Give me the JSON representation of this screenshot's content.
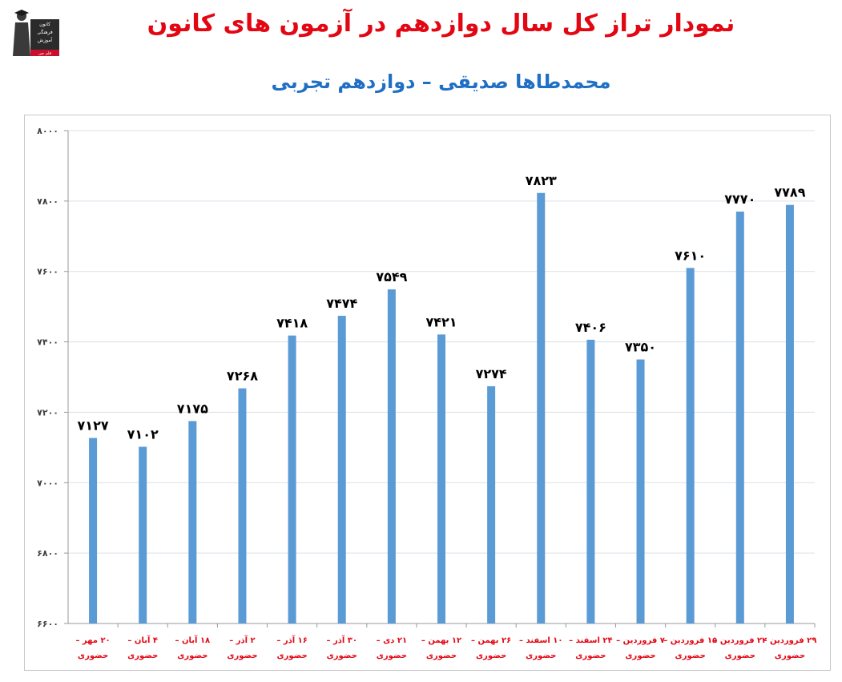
{
  "header": {
    "title": "نمودار تراز کل سال دوازدهم در آزمون های کانون",
    "subtitle": "محمدطاها صدیقی – دوازدهم تجربی",
    "logo_lines": [
      "کانون",
      "فرهنگی",
      "آموزش",
      "قلم چی"
    ]
  },
  "colors": {
    "title": "#e30613",
    "subtitle": "#1f6fc4",
    "bar": "#5b9bd5",
    "grid": "#d9e1ea",
    "category_label": "#e30613",
    "value_label": "#000000",
    "tick_label": "#404040"
  },
  "chart_data": {
    "type": "bar",
    "title": "نمودار تراز کل سال دوازدهم در آزمون های کانون",
    "subtitle": "محمدطاها صدیقی – دوازدهم تجربی",
    "categories": [
      [
        "۲۰ مهر –",
        "حضوری"
      ],
      [
        "۴ آبان –",
        "حضوری"
      ],
      [
        "۱۸ آبان –",
        "حضوری"
      ],
      [
        "۲ آذر –",
        "حضوری"
      ],
      [
        "۱۶ آذر –",
        "حضوری"
      ],
      [
        "۳۰ آذر –",
        "حضوری"
      ],
      [
        "۲۱ دی –",
        "حضوری"
      ],
      [
        "۱۲ بهمن –",
        "حضوری"
      ],
      [
        "۲۶ بهمن –",
        "حضوری"
      ],
      [
        "۱۰ اسفند –",
        "حضوری"
      ],
      [
        "۲۴ اسفند –",
        "حضوری"
      ],
      [
        "۷ فروردین –",
        "حضوری"
      ],
      [
        "۱۵ فروردین –",
        "حضوری"
      ],
      [
        "۲۲ فروردین –",
        "حضوری"
      ],
      [
        "۲۹ فروردین –",
        "حضوری"
      ]
    ],
    "values": [
      7127,
      7102,
      7175,
      7268,
      7418,
      7474,
      7549,
      7421,
      7274,
      7823,
      7406,
      7350,
      7610,
      7770,
      7789
    ],
    "value_labels": [
      "۷۱۲۷",
      "۷۱۰۲",
      "۷۱۷۵",
      "۷۲۶۸",
      "۷۴۱۸",
      "۷۴۷۴",
      "۷۵۴۹",
      "۷۴۲۱",
      "۷۲۷۴",
      "۷۸۲۳",
      "۷۴۰۶",
      "۷۳۵۰",
      "۷۶۱۰",
      "۷۷۷۰",
      "۷۷۸۹"
    ],
    "ylim": [
      6600,
      8000
    ],
    "yticks": [
      6600,
      6800,
      7000,
      7200,
      7400,
      7600,
      7800,
      8000
    ],
    "ytick_labels": [
      "۶۶۰۰",
      "۶۸۰۰",
      "۷۰۰۰",
      "۷۲۰۰",
      "۷۴۰۰",
      "۷۶۰۰",
      "۷۸۰۰",
      "۸۰۰۰"
    ],
    "grid": true,
    "legend": "none"
  }
}
